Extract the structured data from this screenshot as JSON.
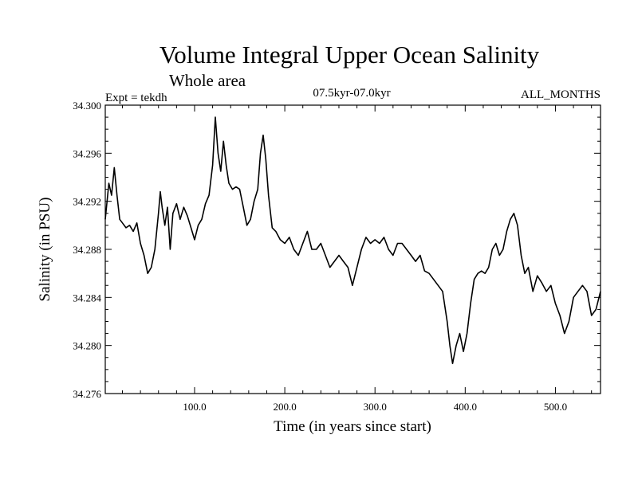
{
  "header": {
    "experiment": "Expt = tekdh",
    "period": "07.5kyr-07.0kyr",
    "months": "ALL_MONTHS"
  },
  "chart_data": {
    "type": "line",
    "title": "Volume Integral Upper Ocean Salinity",
    "subtitle": "Whole area",
    "xlabel": "Time (in years since start)",
    "ylabel": "Salinity (in PSU)",
    "xlim": [
      1,
      550
    ],
    "ylim": [
      34.276,
      34.3
    ],
    "xticks": [
      100,
      200,
      300,
      400,
      500
    ],
    "xtick_labels": [
      "100.0",
      "200.0",
      "300.0",
      "400.0",
      "500.0"
    ],
    "yticks": [
      34.276,
      34.28,
      34.284,
      34.288,
      34.292,
      34.296,
      34.3
    ],
    "ytick_labels": [
      "34.276",
      "34.280",
      "34.284",
      "34.288",
      "34.292",
      "34.296",
      "34.300"
    ],
    "grid": false,
    "series": [
      {
        "name": "salinity",
        "color": "#000000",
        "x": [
          1,
          5,
          8,
          11,
          14,
          17,
          20,
          24,
          28,
          32,
          36,
          40,
          44,
          48,
          52,
          56,
          60,
          62,
          64,
          67,
          70,
          73,
          76,
          80,
          84,
          88,
          92,
          96,
          100,
          104,
          108,
          112,
          116,
          120,
          123,
          126,
          129,
          132,
          135,
          138,
          142,
          146,
          150,
          154,
          158,
          162,
          166,
          170,
          173,
          176,
          179,
          182,
          186,
          190,
          195,
          200,
          205,
          210,
          215,
          220,
          225,
          230,
          235,
          240,
          245,
          250,
          255,
          260,
          265,
          270,
          275,
          280,
          285,
          290,
          295,
          300,
          305,
          310,
          315,
          320,
          325,
          330,
          335,
          340,
          345,
          350,
          355,
          360,
          365,
          370,
          375,
          380,
          383,
          386,
          390,
          394,
          398,
          402,
          406,
          410,
          414,
          418,
          422,
          426,
          430,
          434,
          438,
          442,
          446,
          450,
          454,
          458,
          462,
          466,
          470,
          475,
          480,
          485,
          490,
          495,
          500,
          505,
          510,
          515,
          520,
          525,
          530,
          535,
          540,
          545,
          550
        ],
        "values": [
          34.2905,
          34.2935,
          34.2925,
          34.2948,
          34.2925,
          34.2905,
          34.2902,
          34.2898,
          34.29,
          34.2895,
          34.2902,
          34.2885,
          34.2875,
          34.286,
          34.2865,
          34.288,
          34.291,
          34.2928,
          34.2915,
          34.29,
          34.2915,
          34.288,
          34.291,
          34.2918,
          34.2905,
          34.2915,
          34.2908,
          34.2898,
          34.2888,
          34.29,
          34.2905,
          34.2918,
          34.2925,
          34.295,
          34.299,
          34.296,
          34.2945,
          34.297,
          34.295,
          34.2935,
          34.293,
          34.2932,
          34.293,
          34.2915,
          34.29,
          34.2905,
          34.292,
          34.293,
          34.296,
          34.2975,
          34.2955,
          34.2925,
          34.2898,
          34.2895,
          34.2888,
          34.2885,
          34.289,
          34.288,
          34.2875,
          34.2885,
          34.2895,
          34.288,
          34.288,
          34.2885,
          34.2875,
          34.2865,
          34.287,
          34.2875,
          34.287,
          34.2865,
          34.285,
          34.2865,
          34.288,
          34.289,
          34.2885,
          34.2888,
          34.2885,
          34.289,
          34.288,
          34.2875,
          34.2885,
          34.2885,
          34.288,
          34.2875,
          34.287,
          34.2875,
          34.2862,
          34.286,
          34.2855,
          34.285,
          34.2845,
          34.282,
          34.28,
          34.2785,
          34.28,
          34.281,
          34.2795,
          34.281,
          34.2835,
          34.2855,
          34.286,
          34.2862,
          34.286,
          34.2865,
          34.288,
          34.2885,
          34.2875,
          34.288,
          34.2895,
          34.2905,
          34.291,
          34.29,
          34.2875,
          34.286,
          34.2865,
          34.2845,
          34.2858,
          34.2852,
          34.2845,
          34.285,
          34.2835,
          34.2825,
          34.281,
          34.282,
          34.284,
          34.2845,
          34.285,
          34.2845,
          34.2825,
          34.283,
          34.2845
        ]
      }
    ]
  }
}
